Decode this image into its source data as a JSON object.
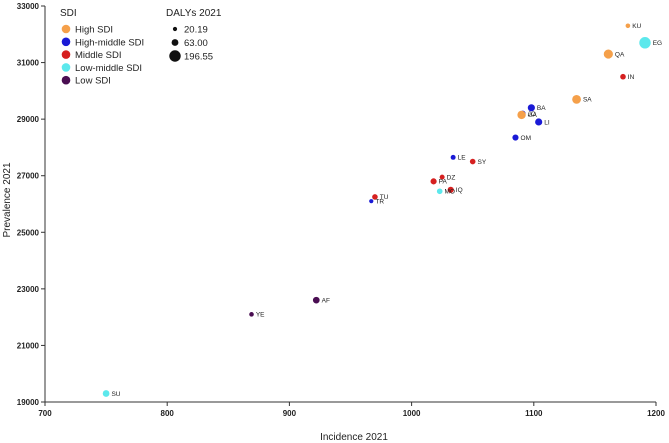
{
  "chart_data": {
    "type": "scatter",
    "xlabel": "Incidence 2021",
    "ylabel": "Prevalence 2021",
    "xlim": [
      700,
      1200
    ],
    "ylim": [
      19000,
      33000
    ],
    "x_ticks": [
      700,
      800,
      900,
      1000,
      1100,
      1200
    ],
    "y_ticks": [
      19000,
      21000,
      23000,
      25000,
      27000,
      29000,
      31000,
      33000
    ],
    "x_tick_labels": [
      "700",
      "800",
      "900",
      "1000",
      "1100",
      "1200"
    ],
    "y_tick_labels": [
      "19000",
      "21000",
      "23000",
      "25000",
      "27000",
      "29000",
      "31000",
      "33000"
    ],
    "grid": false,
    "legend_sdi": {
      "title": "SDI",
      "placement": "top-left",
      "entries": [
        {
          "label": "High SDI",
          "color": "#F5A04A"
        },
        {
          "label": "High-middle SDI",
          "color": "#1A1AD6"
        },
        {
          "label": "Middle SDI",
          "color": "#D62020"
        },
        {
          "label": "Low-middle SDI",
          "color": "#5CE8EC"
        },
        {
          "label": "Low SDI",
          "color": "#4A0E52"
        }
      ]
    },
    "legend_size": {
      "title": "DALYs 2021",
      "entries": [
        {
          "label": "20.19",
          "value": 20.19
        },
        {
          "label": "63.00",
          "value": 63.0
        },
        {
          "label": "196.55",
          "value": 196.55
        }
      ]
    },
    "points": [
      {
        "label": "KU",
        "x": 1177,
        "y": 32300,
        "group": "High SDI",
        "dalys": 25
      },
      {
        "label": "EG",
        "x": 1191,
        "y": 31700,
        "group": "Low-middle SDI",
        "dalys": 196.55
      },
      {
        "label": "QA",
        "x": 1161,
        "y": 31300,
        "group": "High SDI",
        "dalys": 120
      },
      {
        "label": "IN",
        "x": 1173,
        "y": 30500,
        "group": "Middle SDI",
        "dalys": 40
      },
      {
        "label": "SA",
        "x": 1135,
        "y": 29700,
        "group": "High SDI",
        "dalys": 110
      },
      {
        "label": "BA",
        "x": 1098,
        "y": 29400,
        "group": "High-middle SDI",
        "dalys": 70
      },
      {
        "label": "JO",
        "x": 1091,
        "y": 29200,
        "group": "High-middle SDI",
        "dalys": 40
      },
      {
        "label": "UA",
        "x": 1090,
        "y": 29150,
        "group": "High SDI",
        "dalys": 100
      },
      {
        "label": "LI",
        "x": 1104,
        "y": 28900,
        "group": "High-middle SDI",
        "dalys": 70
      },
      {
        "label": "OM",
        "x": 1085,
        "y": 28350,
        "group": "High-middle SDI",
        "dalys": 50
      },
      {
        "label": "LE",
        "x": 1034,
        "y": 27650,
        "group": "High-middle SDI",
        "dalys": 30
      },
      {
        "label": "SY",
        "x": 1050,
        "y": 27500,
        "group": "Middle SDI",
        "dalys": 40
      },
      {
        "label": "DZ",
        "x": 1025,
        "y": 26950,
        "group": "Middle SDI",
        "dalys": 30
      },
      {
        "label": "PA",
        "x": 1018,
        "y": 26800,
        "group": "Middle SDI",
        "dalys": 50
      },
      {
        "label": "IQ",
        "x": 1032,
        "y": 26500,
        "group": "Middle SDI",
        "dalys": 50
      },
      {
        "label": "MO",
        "x": 1023,
        "y": 26450,
        "group": "Low-middle SDI",
        "dalys": 40
      },
      {
        "label": "TU",
        "x": 970,
        "y": 26250,
        "group": "Middle SDI",
        "dalys": 40
      },
      {
        "label": "TR",
        "x": 967,
        "y": 26100,
        "group": "High-middle SDI",
        "dalys": 20
      },
      {
        "label": "AF",
        "x": 922,
        "y": 22600,
        "group": "Low SDI",
        "dalys": 60
      },
      {
        "label": "YE",
        "x": 869,
        "y": 22100,
        "group": "Low SDI",
        "dalys": 25
      },
      {
        "label": "SU",
        "x": 750,
        "y": 19300,
        "group": "Low-middle SDI",
        "dalys": 60
      }
    ]
  }
}
